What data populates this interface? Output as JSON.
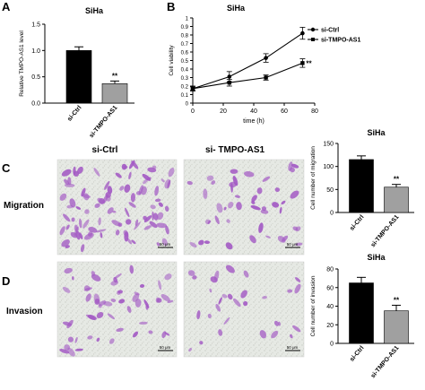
{
  "panel_letters": {
    "a": "A",
    "b": "B",
    "c": "C",
    "d": "D"
  },
  "micro": {
    "col_ctrl": "si-Ctrl",
    "col_kd": "si- TMPO-AS1",
    "row_migration": "Migration",
    "row_invasion": "Invasion",
    "scale_bar": "50 μm"
  },
  "colors": {
    "ctrl": "#000000",
    "kd": "#a0a0a0",
    "stain": "#a35ac4",
    "background_field": "#e6e9e4"
  },
  "chart_data": [
    {
      "id": "A",
      "type": "bar",
      "title": "SiHa",
      "xlabel": "",
      "ylabel": "Relative TMPO-AS1 level",
      "categories": [
        "si-Ctrl",
        "si-TMPO-AS1"
      ],
      "values": [
        1.0,
        0.37
      ],
      "errors": [
        0.07,
        0.05
      ],
      "ylim": [
        0,
        1.5
      ],
      "yticks": [
        0.0,
        0.5,
        1.0,
        1.5
      ],
      "ytick_labels": [
        "0.0",
        "0.5",
        "1.0",
        "1.5"
      ],
      "significance": "**",
      "grid": false
    },
    {
      "id": "B",
      "type": "line",
      "title": "SiHa",
      "xlabel": "time (h)",
      "ylabel": "Cell viability",
      "x": [
        0,
        24,
        48,
        72
      ],
      "xlim": [
        0,
        80
      ],
      "xticks": [
        0,
        20,
        40,
        60,
        80
      ],
      "ylim": [
        0,
        1.0
      ],
      "yticks": [
        0.0,
        0.1,
        0.2,
        0.3,
        0.4,
        0.5,
        0.6,
        0.7,
        0.8,
        0.9,
        1.0
      ],
      "ytick_labels": [
        "0",
        "0.1",
        "0.2",
        "0.3",
        "0.4",
        "0.5",
        "0.6",
        "0.7",
        "0.8",
        "0.9",
        "1"
      ],
      "series": [
        {
          "name": "si-Ctrl",
          "marker": "circle",
          "values": [
            0.17,
            0.31,
            0.53,
            0.82
          ],
          "errors": [
            0.03,
            0.06,
            0.05,
            0.07
          ]
        },
        {
          "name": "si-TMPO-AS1",
          "marker": "square",
          "values": [
            0.17,
            0.24,
            0.3,
            0.47
          ],
          "errors": [
            0.02,
            0.04,
            0.03,
            0.05
          ]
        }
      ],
      "legend_position": "top-right",
      "significance": "**",
      "grid": false
    },
    {
      "id": "C",
      "type": "bar",
      "title": "SiHa",
      "xlabel": "",
      "ylabel": "Cell number of migration",
      "categories": [
        "si-Ctrl",
        "si-TMPO-AS1"
      ],
      "values": [
        115,
        55
      ],
      "errors": [
        8,
        6
      ],
      "ylim": [
        0,
        150
      ],
      "yticks": [
        0,
        50,
        100,
        150
      ],
      "ytick_labels": [
        "0",
        "50",
        "100",
        "150"
      ],
      "significance": "**",
      "grid": false
    },
    {
      "id": "D",
      "type": "bar",
      "title": "SiHa",
      "xlabel": "",
      "ylabel": "Cell number of invasion",
      "categories": [
        "si-Ctrl",
        "si-TMPO-AS1"
      ],
      "values": [
        65,
        35
      ],
      "errors": [
        6,
        6
      ],
      "ylim": [
        0,
        80
      ],
      "yticks": [
        0,
        20,
        40,
        60,
        80
      ],
      "ytick_labels": [
        "0",
        "20",
        "40",
        "60",
        "80"
      ],
      "significance": "**",
      "grid": false
    }
  ]
}
